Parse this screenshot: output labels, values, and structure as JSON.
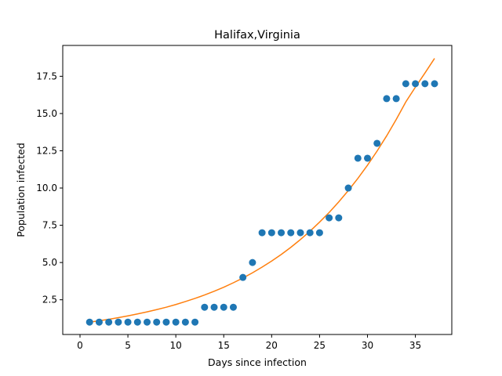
{
  "chart_data": {
    "type": "scatter",
    "title": "Halifax,Virginia",
    "xlabel": "Days since infection",
    "ylabel": "Population infected",
    "xlim": [
      -1.8,
      38.8
    ],
    "ylim": [
      0.17,
      19.57
    ],
    "xticks": [
      0,
      5,
      10,
      15,
      20,
      25,
      30,
      35
    ],
    "xtick_labels": [
      "0",
      "5",
      "10",
      "15",
      "20",
      "25",
      "30",
      "35"
    ],
    "yticks": [
      2.5,
      5.0,
      7.5,
      10.0,
      12.5,
      15.0,
      17.5
    ],
    "ytick_labels": [
      "2.5",
      "5.0",
      "7.5",
      "10.0",
      "12.5",
      "15.0",
      "17.5"
    ],
    "grid": false,
    "series": [
      {
        "kind": "scatter",
        "color": "#1f77b4",
        "x": [
          1,
          2,
          3,
          4,
          5,
          6,
          7,
          8,
          9,
          10,
          11,
          12,
          13,
          14,
          15,
          16,
          17,
          18,
          19,
          20,
          21,
          22,
          23,
          24,
          25,
          26,
          27,
          28,
          29,
          30,
          31,
          32,
          33,
          34,
          35,
          36,
          37
        ],
        "y": [
          1,
          1,
          1,
          1,
          1,
          1,
          1,
          1,
          1,
          1,
          1,
          1,
          2,
          2,
          2,
          2,
          4,
          5,
          7,
          7,
          7,
          7,
          7,
          7,
          7,
          8,
          8,
          10,
          12,
          12,
          13,
          16,
          16,
          17,
          17,
          17,
          17
        ]
      },
      {
        "kind": "line",
        "color": "#ff7f0e",
        "x": [
          1,
          2,
          3,
          4,
          5,
          6,
          7,
          8,
          9,
          10,
          11,
          12,
          13,
          14,
          15,
          16,
          17,
          18,
          19,
          20,
          21,
          22,
          23,
          24,
          25,
          26,
          27,
          28,
          29,
          30,
          31,
          32,
          33,
          34,
          35,
          36,
          37
        ],
        "y": [
          1.0,
          1.09,
          1.19,
          1.3,
          1.42,
          1.55,
          1.69,
          1.84,
          2.0,
          2.18,
          2.38,
          2.59,
          2.82,
          3.07,
          3.34,
          3.64,
          3.96,
          4.31,
          4.69,
          5.1,
          5.54,
          6.02,
          6.54,
          7.1,
          7.71,
          8.36,
          9.07,
          9.83,
          10.65,
          11.53,
          12.48,
          13.5,
          14.6,
          15.78,
          16.77,
          17.72,
          18.7
        ]
      }
    ]
  }
}
